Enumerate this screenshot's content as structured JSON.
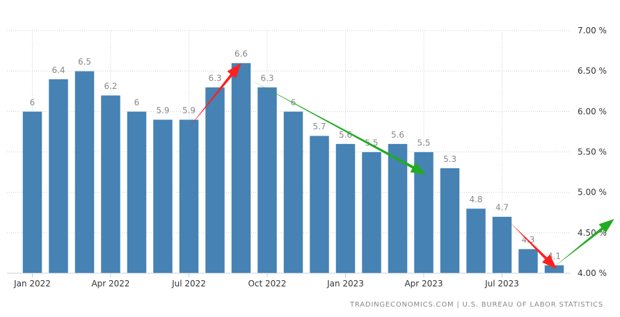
{
  "chart_data": {
    "type": "bar",
    "categories": [
      "Jan 2022",
      "Feb 2022",
      "Mar 2022",
      "Apr 2022",
      "May 2022",
      "Jun 2022",
      "Jul 2022",
      "Aug 2022",
      "Sep 2022",
      "Oct 2022",
      "Nov 2022",
      "Dec 2022",
      "Jan 2023",
      "Feb 2023",
      "Mar 2023",
      "Apr 2023",
      "May 2023",
      "Jun 2023",
      "Jul 2023",
      "Aug 2023",
      "Sep 2023"
    ],
    "values": [
      6,
      6.4,
      6.5,
      6.2,
      6,
      5.9,
      5.9,
      6.3,
      6.6,
      6.3,
      6,
      5.7,
      5.6,
      5.5,
      5.6,
      5.5,
      5.3,
      4.8,
      4.7,
      4.3,
      4.1
    ],
    "value_labels": [
      "6",
      "6.4",
      "6.5",
      "6.2",
      "6",
      "5.9",
      "5.9",
      "6.3",
      "6.6",
      "6.3",
      "6",
      "5.7",
      "5.6",
      "5.5",
      "5.6",
      "5.5",
      "5.3",
      "4.8",
      "4.7",
      "4.3",
      "4.1"
    ],
    "x_tick_labels": [
      {
        "label": "Jan 2022",
        "index": 0
      },
      {
        "label": "Apr 2022",
        "index": 3
      },
      {
        "label": "Jul 2022",
        "index": 6
      },
      {
        "label": "Oct 2022",
        "index": 9
      },
      {
        "label": "Jan 2023",
        "index": 12
      },
      {
        "label": "Apr 2023",
        "index": 15
      },
      {
        "label": "Jul 2023",
        "index": 18
      }
    ],
    "y_ticks": [
      4.0,
      4.5,
      5.0,
      5.5,
      6.0,
      6.5,
      7.0
    ],
    "y_tick_labels": [
      "4.00 %",
      "4.50 %",
      "5.00 %",
      "5.50 %",
      "6.00 %",
      "6.50 %",
      "7.00 %"
    ],
    "ylim": [
      4.0,
      7.0
    ],
    "y_axis_position": "right",
    "grid": true,
    "bar_color": "#4682b4",
    "annotations": [
      {
        "type": "arrow",
        "color": "#ff2020",
        "from": {
          "index": 6,
          "value": 5.8
        },
        "to": {
          "index": 8,
          "value": 6.6
        }
      },
      {
        "type": "arrow",
        "color": "#22aa22",
        "from": {
          "index": 8.3,
          "value": 6.4
        },
        "to": {
          "index": 15.1,
          "value": 5.22
        }
      },
      {
        "type": "arrow",
        "color": "#ff2020",
        "from": {
          "index": 18.3,
          "value": 4.63
        },
        "to": {
          "index": 20.1,
          "value": 4.05
        }
      },
      {
        "type": "arrow",
        "color": "#22aa22",
        "from": {
          "index": 20,
          "value": 4.08
        },
        "to": {
          "index": 22.3,
          "value": 4.67
        }
      }
    ]
  },
  "source": "TRADINGECONOMICS.COM | U.S. BUREAU OF LABOR STATISTICS"
}
